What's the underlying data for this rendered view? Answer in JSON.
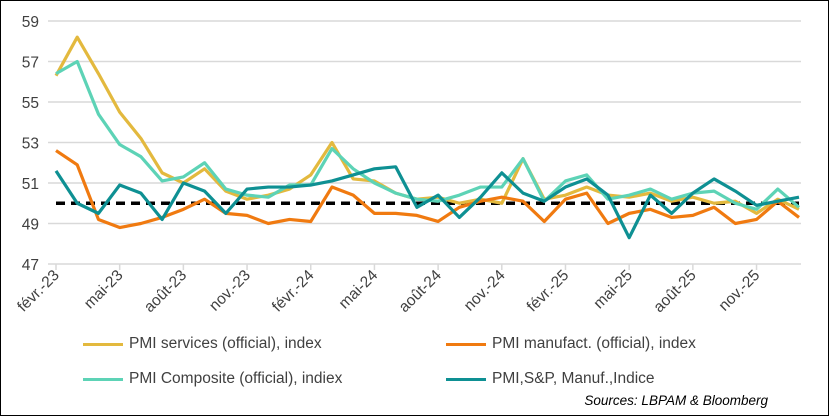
{
  "chart_data": {
    "type": "line",
    "x": [
      "févr.-23",
      "mars-23",
      "avr.-23",
      "mai-23",
      "juin-23",
      "juil.-23",
      "août-23",
      "sept.-23",
      "oct.-23",
      "nov.-23",
      "déc.-23",
      "janv.-24",
      "févr.-24",
      "mars-24",
      "avr.-24",
      "mai-24",
      "juin-24",
      "juil.-24",
      "août-24",
      "sept.-24",
      "oct.-24",
      "nov.-24",
      "déc.-24",
      "janv.-25",
      "févr.-25",
      "mars-25",
      "avr.-25",
      "mai-25",
      "juin-25",
      "juil.-25",
      "août-25",
      "sept.-25",
      "oct.-25",
      "nov.-25",
      "déc.-25",
      "janv.-26"
    ],
    "tick_labels": [
      "févr.-23",
      "mai-23",
      "août-23",
      "nov.-23",
      "févr.-24",
      "mai-24",
      "août-24",
      "nov.-24",
      "févr.-25",
      "mai-25",
      "août-25",
      "nov.-25"
    ],
    "yticks": [
      47,
      49,
      51,
      53,
      55,
      57,
      59
    ],
    "ylim": [
      47,
      59
    ],
    "grid": "horizontal",
    "reference_line": 50,
    "legend_placement": "bottom",
    "series": [
      {
        "name": "PMI services (official), index",
        "color": "#E3B93E",
        "values": [
          56.3,
          58.2,
          56.4,
          54.5,
          53.2,
          51.5,
          51.0,
          51.7,
          50.6,
          50.2,
          50.4,
          50.7,
          51.4,
          53.0,
          51.2,
          51.1,
          50.5,
          50.2,
          50.3,
          50.0,
          50.2,
          50.0,
          52.2,
          50.2,
          50.4,
          50.8,
          50.4,
          50.3,
          50.5,
          50.1,
          50.3,
          50.0,
          50.1,
          49.5,
          50.2,
          49.7
        ]
      },
      {
        "name": "PMI  manufact. (official), index",
        "color": "#F07A10",
        "values": [
          52.6,
          51.9,
          49.2,
          48.8,
          49.0,
          49.3,
          49.7,
          50.2,
          49.5,
          49.4,
          49.0,
          49.2,
          49.1,
          50.8,
          50.4,
          49.5,
          49.5,
          49.4,
          49.1,
          49.8,
          50.1,
          50.3,
          50.1,
          49.1,
          50.2,
          50.5,
          49.0,
          49.5,
          49.7,
          49.3,
          49.4,
          49.8,
          49.0,
          49.2,
          50.1,
          49.3
        ]
      },
      {
        "name": "PMI  Composite (official), indiex",
        "color": "#5DD3B6",
        "values": [
          56.4,
          57.0,
          54.4,
          52.9,
          52.3,
          51.1,
          51.3,
          52.0,
          50.7,
          50.4,
          50.3,
          50.9,
          50.9,
          52.7,
          51.7,
          51.0,
          50.5,
          50.2,
          50.1,
          50.4,
          50.8,
          50.8,
          52.2,
          50.1,
          51.1,
          51.4,
          50.2,
          50.4,
          50.7,
          50.2,
          50.5,
          50.6,
          50.0,
          49.7,
          50.7,
          49.8
        ]
      },
      {
        "name": "PMI,S&P, Manuf.,Indice",
        "color": "#0E9093",
        "values": [
          51.6,
          50.0,
          49.5,
          50.9,
          50.5,
          49.2,
          51.0,
          50.6,
          49.5,
          50.7,
          50.8,
          50.8,
          50.9,
          51.1,
          51.4,
          51.7,
          51.8,
          49.8,
          50.4,
          49.3,
          50.3,
          51.5,
          50.5,
          50.1,
          50.8,
          51.2,
          50.4,
          48.3,
          50.4,
          49.5,
          50.5,
          51.2,
          50.6,
          49.9,
          50.1,
          50.3
        ]
      }
    ]
  },
  "source": "Sources: LBPAM & Bloomberg"
}
